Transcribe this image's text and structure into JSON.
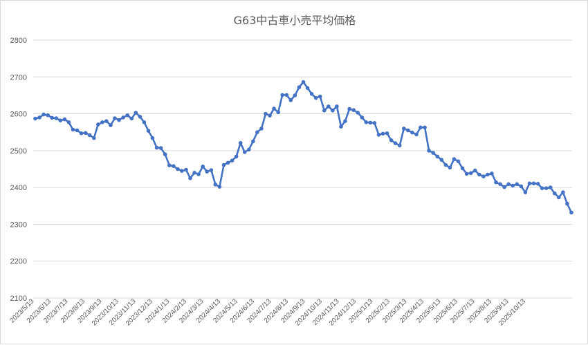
{
  "chart_data": {
    "type": "line",
    "title": "G63中古車小売平均価格",
    "xlabel": "",
    "ylabel": "",
    "ylim": [
      2100,
      2800
    ],
    "yticks": [
      "2100",
      "2200",
      "2300",
      "2400",
      "2500",
      "2600",
      "2700",
      "2800"
    ],
    "grid": true,
    "legend": "none",
    "colors": {
      "line": "#4472C4",
      "grid": "#d9d9d9",
      "text": "#595959"
    },
    "x_tick_labels": [
      "2023/5/13",
      "2023/6/13",
      "2023/7/13",
      "2023/8/13",
      "2023/9/13",
      "2023/10/13",
      "2023/11/13",
      "2023/12/13",
      "2024/1/13",
      "2024/2/13",
      "2024/3/13",
      "2024/4/13",
      "2024/5/13",
      "2024/6/13",
      "2024/7/13",
      "2024/8/13",
      "2024/9/13",
      "2024/10/13",
      "2024/11/13",
      "2024/12/13",
      "2025/1/13",
      "2025/2/13",
      "2025/3/13",
      "2025/4/13",
      "2025/5/13",
      "2025/6/13",
      "2025/7/13",
      "2025/8/13",
      "2025/9/13",
      "2025/10/13"
    ],
    "series": [
      {
        "values": [
          2587,
          2590,
          2598,
          2596,
          2589,
          2588,
          2582,
          2585,
          2577,
          2557,
          2555,
          2547,
          2548,
          2542,
          2534,
          2571,
          2577,
          2580,
          2569,
          2588,
          2583,
          2590,
          2596,
          2587,
          2603,
          2592,
          2577,
          2554,
          2534,
          2508,
          2507,
          2490,
          2460,
          2458,
          2450,
          2445,
          2448,
          2425,
          2440,
          2436,
          2457,
          2443,
          2447,
          2408,
          2402,
          2461,
          2467,
          2473,
          2484,
          2521,
          2496,
          2503,
          2525,
          2550,
          2560,
          2600,
          2595,
          2614,
          2604,
          2651,
          2651,
          2637,
          2650,
          2672,
          2686,
          2670,
          2654,
          2643,
          2647,
          2609,
          2620,
          2609,
          2620,
          2565,
          2580,
          2613,
          2610,
          2603,
          2590,
          2577,
          2576,
          2575,
          2543,
          2546,
          2547,
          2528,
          2520,
          2514,
          2560,
          2555,
          2549,
          2544,
          2563,
          2563,
          2500,
          2494,
          2484,
          2475,
          2461,
          2454,
          2477,
          2471,
          2452,
          2437,
          2439,
          2446,
          2435,
          2430,
          2435,
          2438,
          2414,
          2409,
          2401,
          2409,
          2405,
          2409,
          2403,
          2387,
          2411,
          2411,
          2410,
          2398,
          2398,
          2400,
          2384,
          2373,
          2387,
          2356,
          2332
        ]
      }
    ]
  }
}
